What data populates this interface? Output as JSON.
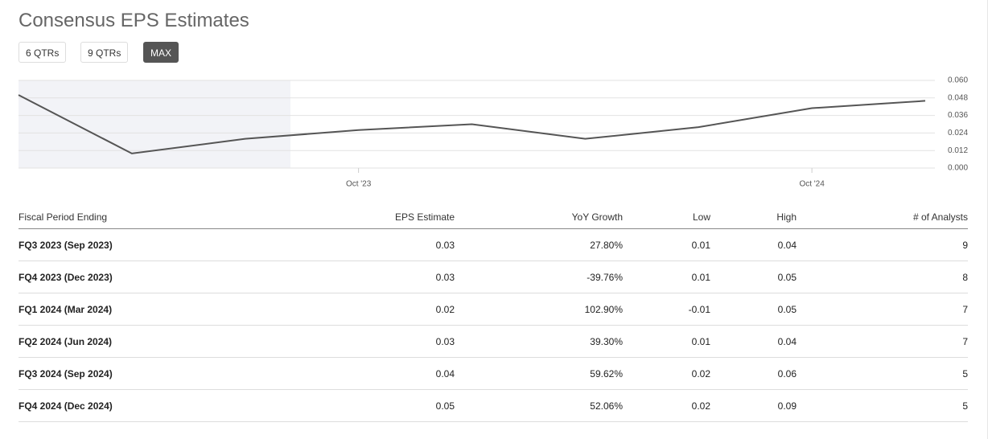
{
  "header": {
    "title": "Consensus EPS Estimates"
  },
  "buttons": [
    "6 QTRs",
    "9 QTRs",
    "MAX"
  ],
  "chart_data": {
    "type": "line",
    "x": [
      "2023-01",
      "2023-04",
      "2023-07",
      "2023-10",
      "2024-01",
      "2024-04",
      "2024-07",
      "2024-10",
      "2025-01"
    ],
    "values": [
      0.05,
      0.01,
      0.02,
      0.026,
      0.03,
      0.02,
      0.028,
      0.041,
      0.046
    ],
    "color": "#555555",
    "xlim": [
      "2023-01",
      "2025-01"
    ],
    "xticks": [
      {
        "value": "2023-10",
        "label": "Oct '23"
      },
      {
        "value": "2024-10",
        "label": "Oct '24"
      }
    ],
    "ylim": [
      0,
      0.06
    ],
    "yticks": [
      {
        "value": 0,
        "label": "0.000"
      },
      {
        "value": 0.012,
        "label": "0.012"
      },
      {
        "value": 0.024,
        "label": "0.024"
      },
      {
        "value": 0.036,
        "label": "0.036"
      },
      {
        "value": 0.048,
        "label": "0.048"
      },
      {
        "value": 0.06,
        "label": "0.060"
      }
    ],
    "grid": true
  },
  "table": {
    "columns": [
      "Fiscal Period Ending",
      "EPS Estimate",
      "YoY Growth",
      "Low",
      "High",
      "# of Analysts"
    ],
    "rows": [
      [
        "FQ3 2023 (Sep 2023)",
        "0.03",
        "27.80%",
        "0.01",
        "0.04",
        "9"
      ],
      [
        "FQ4 2023 (Dec 2023)",
        "0.03",
        "-39.76%",
        "0.01",
        "0.05",
        "8"
      ],
      [
        "FQ1 2024 (Mar 2024)",
        "0.02",
        "102.90%",
        "-0.01",
        "0.05",
        "7"
      ],
      [
        "FQ2 2024 (Jun 2024)",
        "0.03",
        "39.30%",
        "0.01",
        "0.04",
        "7"
      ],
      [
        "FQ3 2024 (Sep 2024)",
        "0.04",
        "59.62%",
        "0.02",
        "0.06",
        "5"
      ],
      [
        "FQ4 2024 (Dec 2024)",
        "0.05",
        "52.06%",
        "0.02",
        "0.09",
        "5"
      ]
    ]
  }
}
